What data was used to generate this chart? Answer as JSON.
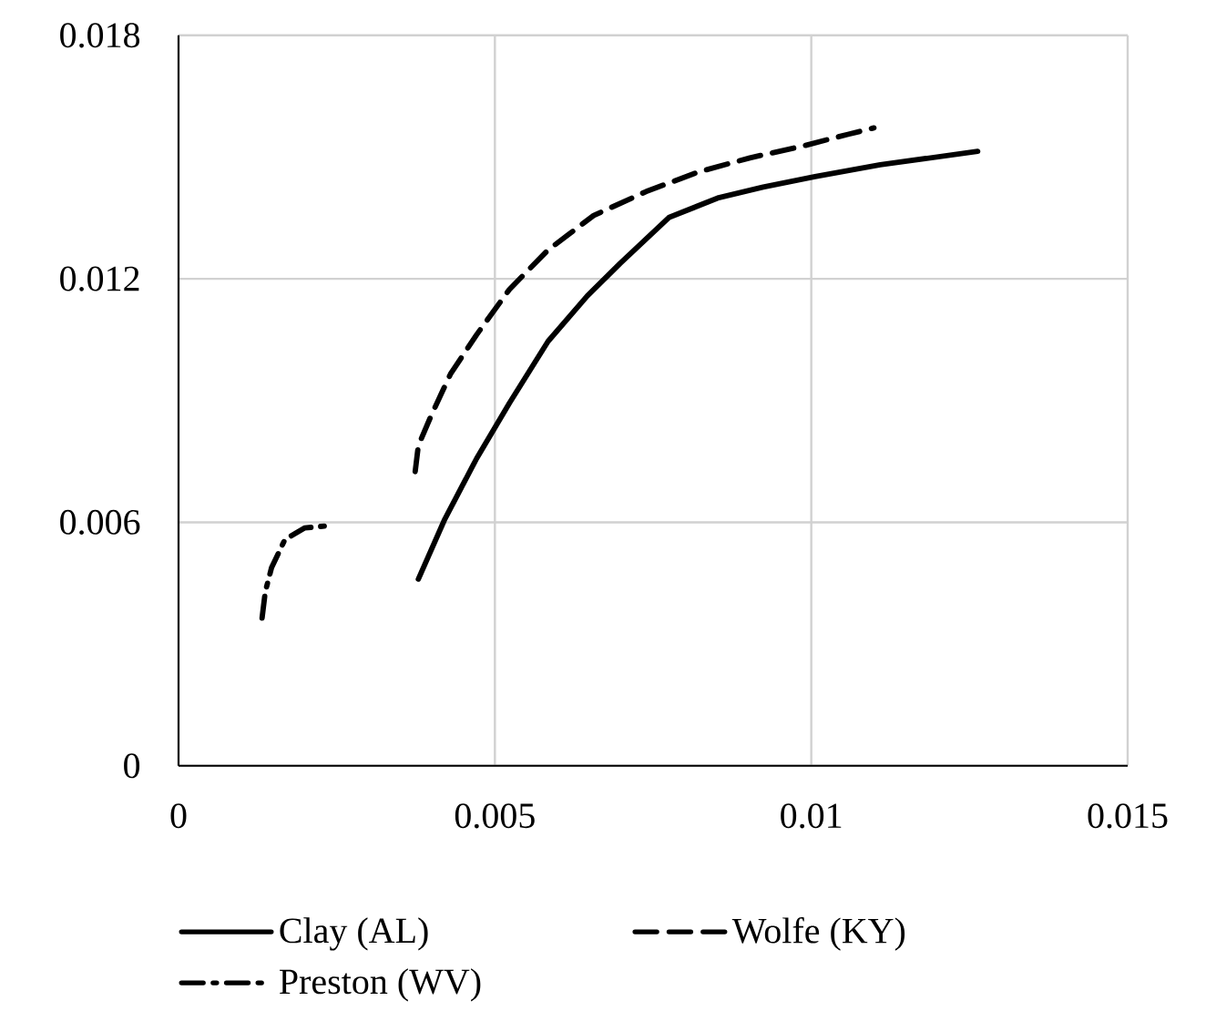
{
  "chart_data": {
    "type": "line",
    "xlim": [
      0,
      0.015
    ],
    "ylim": [
      0,
      0.018
    ],
    "xticks": [
      0,
      0.005,
      0.01,
      0.015
    ],
    "yticks": [
      0,
      0.006,
      0.012,
      0.018
    ],
    "grid": true,
    "legend": "bottom",
    "marker": "none",
    "series": [
      {
        "name": "Clay (AL)",
        "color": "#000000",
        "line_style": "solid",
        "x": [
          0.00379,
          0.0042,
          0.00471,
          0.00523,
          0.00584,
          0.00646,
          0.00698,
          0.00775,
          0.00852,
          0.00924,
          0.01006,
          0.01109,
          0.01263
        ],
        "values": [
          0.0046,
          0.00605,
          0.00757,
          0.00894,
          0.01046,
          0.01158,
          0.01238,
          0.01351,
          0.01399,
          0.01426,
          0.01452,
          0.01481,
          0.01514
        ]
      },
      {
        "name": "Wolfe (KY)",
        "color": "#000000",
        "line_style": "dashed",
        "x": [
          0.00374,
          0.00379,
          0.00399,
          0.0043,
          0.00471,
          0.00523,
          0.00584,
          0.00656,
          0.00739,
          0.00821,
          0.00903,
          0.00986,
          0.01058,
          0.01099
        ],
        "values": [
          0.00725,
          0.00789,
          0.00862,
          0.00966,
          0.01062,
          0.01174,
          0.01271,
          0.01356,
          0.01415,
          0.01463,
          0.01498,
          0.01527,
          0.01556,
          0.01572
        ]
      },
      {
        "name": "Preston (WV)",
        "color": "#000000",
        "line_style": "dashdot",
        "x": [
          0.00132,
          0.00137,
          0.00147,
          0.00168,
          0.00199,
          0.0024
        ],
        "values": [
          0.00364,
          0.00428,
          0.00488,
          0.00557,
          0.00586,
          0.00592
        ]
      }
    ]
  }
}
